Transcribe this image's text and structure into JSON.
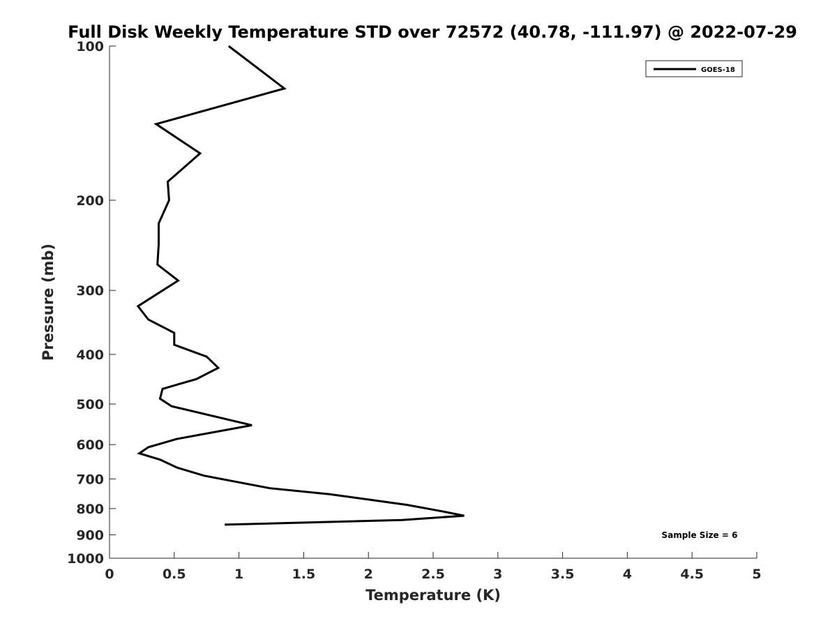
{
  "chart_data": {
    "type": "line",
    "title": "Full Disk Weekly Temperature STD over 72572 (40.78, -111.97) @ 2022-07-29",
    "xlabel": "Temperature (K)",
    "ylabel": "Pressure (mb)",
    "xlim": [
      0,
      5
    ],
    "ylim": [
      1000,
      100
    ],
    "y_scale": "log",
    "y_reversed": true,
    "grid": false,
    "legend_position": "top-right",
    "x_ticks": [
      0,
      0.5,
      1,
      1.5,
      2,
      2.5,
      3,
      3.5,
      4,
      4.5,
      5
    ],
    "x_tick_labels": [
      "0",
      "0.5",
      "1",
      "1.5",
      "2",
      "2.5",
      "3",
      "3.5",
      "4",
      "4.5",
      "5"
    ],
    "y_ticks": [
      100,
      200,
      300,
      400,
      500,
      600,
      700,
      800,
      900,
      1000
    ],
    "y_tick_labels": [
      "100",
      "200",
      "300",
      "400",
      "500",
      "600",
      "700",
      "800",
      "900",
      "1000"
    ],
    "series": [
      {
        "name": "GOES-18",
        "color": "#000000",
        "points": [
          [
            0.92,
            100
          ],
          [
            1.35,
            121
          ],
          [
            0.36,
            142
          ],
          [
            0.7,
            162
          ],
          [
            0.45,
            184
          ],
          [
            0.46,
            200
          ],
          [
            0.38,
            222
          ],
          [
            0.38,
            244
          ],
          [
            0.37,
            267
          ],
          [
            0.53,
            287
          ],
          [
            0.22,
            322
          ],
          [
            0.3,
            342
          ],
          [
            0.5,
            363
          ],
          [
            0.5,
            383
          ],
          [
            0.75,
            404
          ],
          [
            0.84,
            425
          ],
          [
            0.67,
            447
          ],
          [
            0.41,
            467
          ],
          [
            0.39,
            488
          ],
          [
            0.48,
            505
          ],
          [
            1.1,
            550
          ],
          [
            0.52,
            585
          ],
          [
            0.3,
            607
          ],
          [
            0.23,
            624
          ],
          [
            0.39,
            642
          ],
          [
            0.52,
            665
          ],
          [
            0.73,
            690
          ],
          [
            1.24,
            730
          ],
          [
            1.7,
            750
          ],
          [
            2.0,
            768
          ],
          [
            2.3,
            787
          ],
          [
            2.57,
            810
          ],
          [
            2.74,
            826
          ],
          [
            2.26,
            842
          ],
          [
            0.89,
            860
          ]
        ]
      }
    ],
    "annotations": [
      "Sample Size = 6"
    ]
  }
}
